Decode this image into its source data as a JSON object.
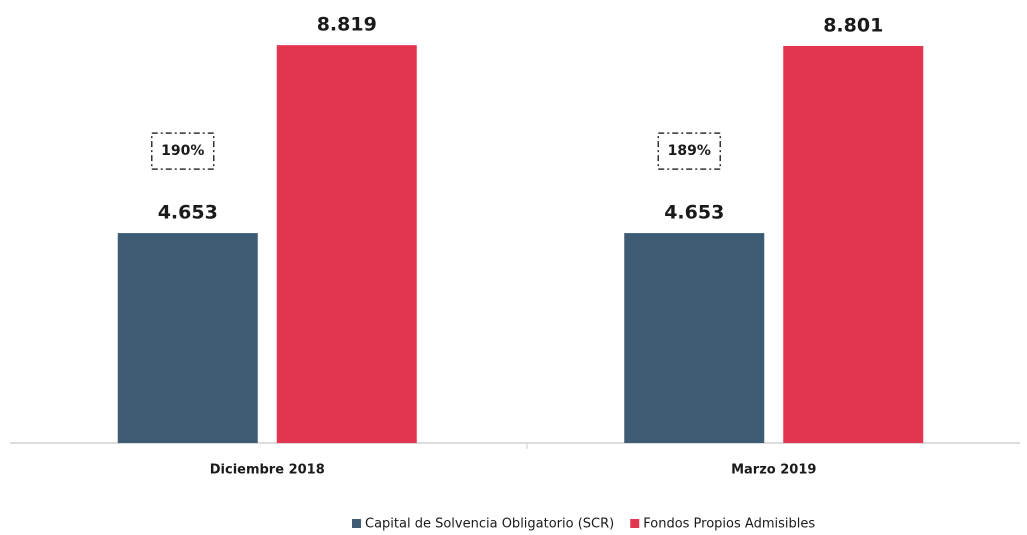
{
  "chart_data": {
    "type": "bar",
    "categories": [
      "Diciembre 2018",
      "Marzo 2019"
    ],
    "series": [
      {
        "name": "Capital de Solvencia Obligatorio (SCR)",
        "color": "#3e5b74",
        "values": [
          4.653,
          4.653
        ]
      },
      {
        "name": "Fondos Propios Admisibles",
        "color": "#e2354f",
        "values": [
          8.819,
          8.801
        ]
      }
    ],
    "annotations": [
      "190%",
      "189%"
    ],
    "ylim": [
      0,
      9
    ],
    "legend": "bottom"
  }
}
